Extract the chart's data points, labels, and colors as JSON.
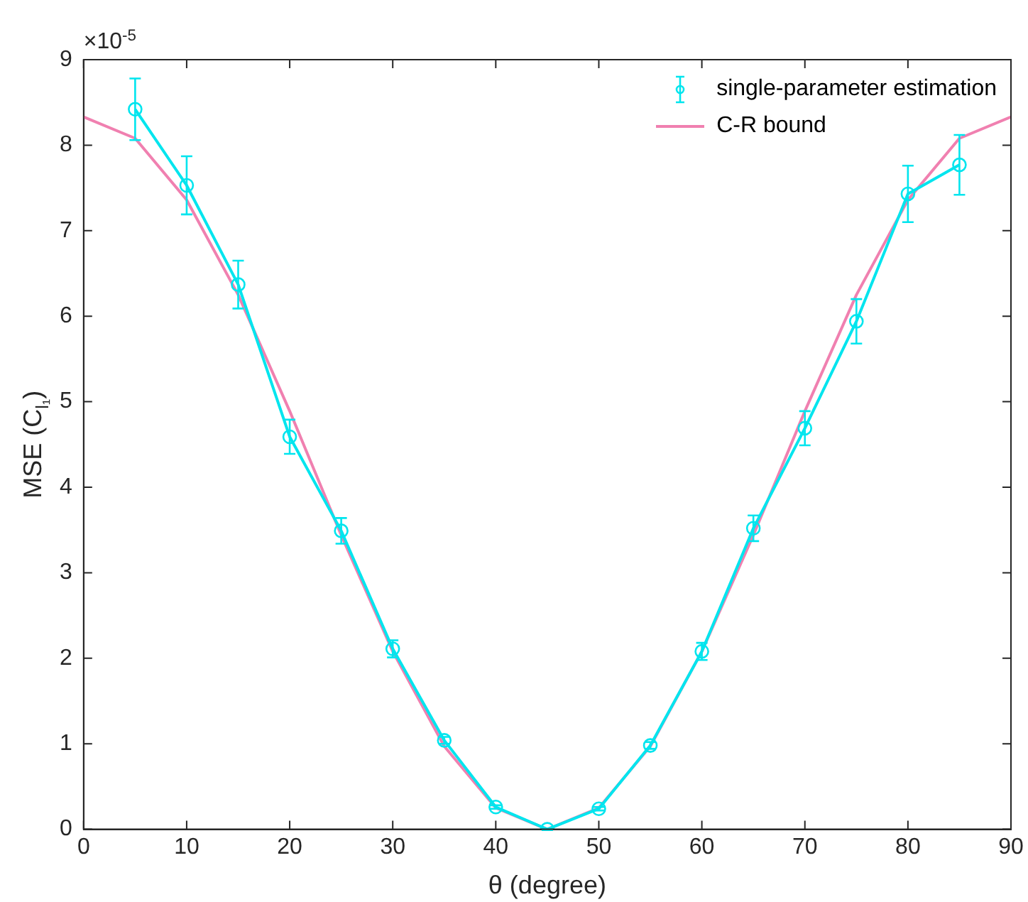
{
  "chart_data": {
    "type": "line",
    "xlabel": "θ (degree)",
    "ylabel": "MSE (C$_{l₁}$)",
    "annotations": [
      "×10$^{-5}$"
    ],
    "xlim": [
      0,
      90
    ],
    "xticks": [
      0,
      10,
      20,
      30,
      40,
      50,
      60,
      70,
      80,
      90
    ],
    "ylim": [
      0,
      9
    ],
    "yticks": [
      0,
      1,
      2,
      3,
      4,
      5,
      6,
      7,
      8,
      9
    ],
    "grid": false,
    "legend": "top right",
    "series": [
      {
        "name": "single-parameter estimation",
        "color": "#00e5ee",
        "marker": "circle",
        "x": [
          5,
          10,
          15,
          20,
          25,
          30,
          35,
          40,
          45,
          50,
          55,
          60,
          65,
          70,
          75,
          80,
          85
        ],
        "values": [
          8.42,
          7.53,
          6.37,
          4.59,
          3.49,
          2.11,
          1.04,
          0.26,
          0.0,
          0.24,
          0.98,
          2.08,
          3.52,
          4.69,
          5.94,
          7.43,
          7.77
        ],
        "errors": [
          0.36,
          0.34,
          0.28,
          0.2,
          0.15,
          0.1,
          0.04,
          0.02,
          0.01,
          0.02,
          0.04,
          0.1,
          0.15,
          0.2,
          0.26,
          0.33,
          0.35
        ]
      },
      {
        "name": "C-R bound",
        "color": "#f080b0",
        "marker": "none",
        "x": [
          0,
          5,
          10,
          15,
          20,
          25,
          30,
          35,
          40,
          45,
          50,
          55,
          60,
          65,
          70,
          75,
          80,
          85,
          90
        ],
        "values": [
          8.33,
          8.08,
          7.36,
          6.25,
          4.89,
          3.44,
          2.08,
          0.97,
          0.25,
          0,
          0.25,
          0.97,
          2.08,
          3.44,
          4.89,
          6.25,
          7.36,
          8.08,
          8.33
        ]
      }
    ]
  }
}
